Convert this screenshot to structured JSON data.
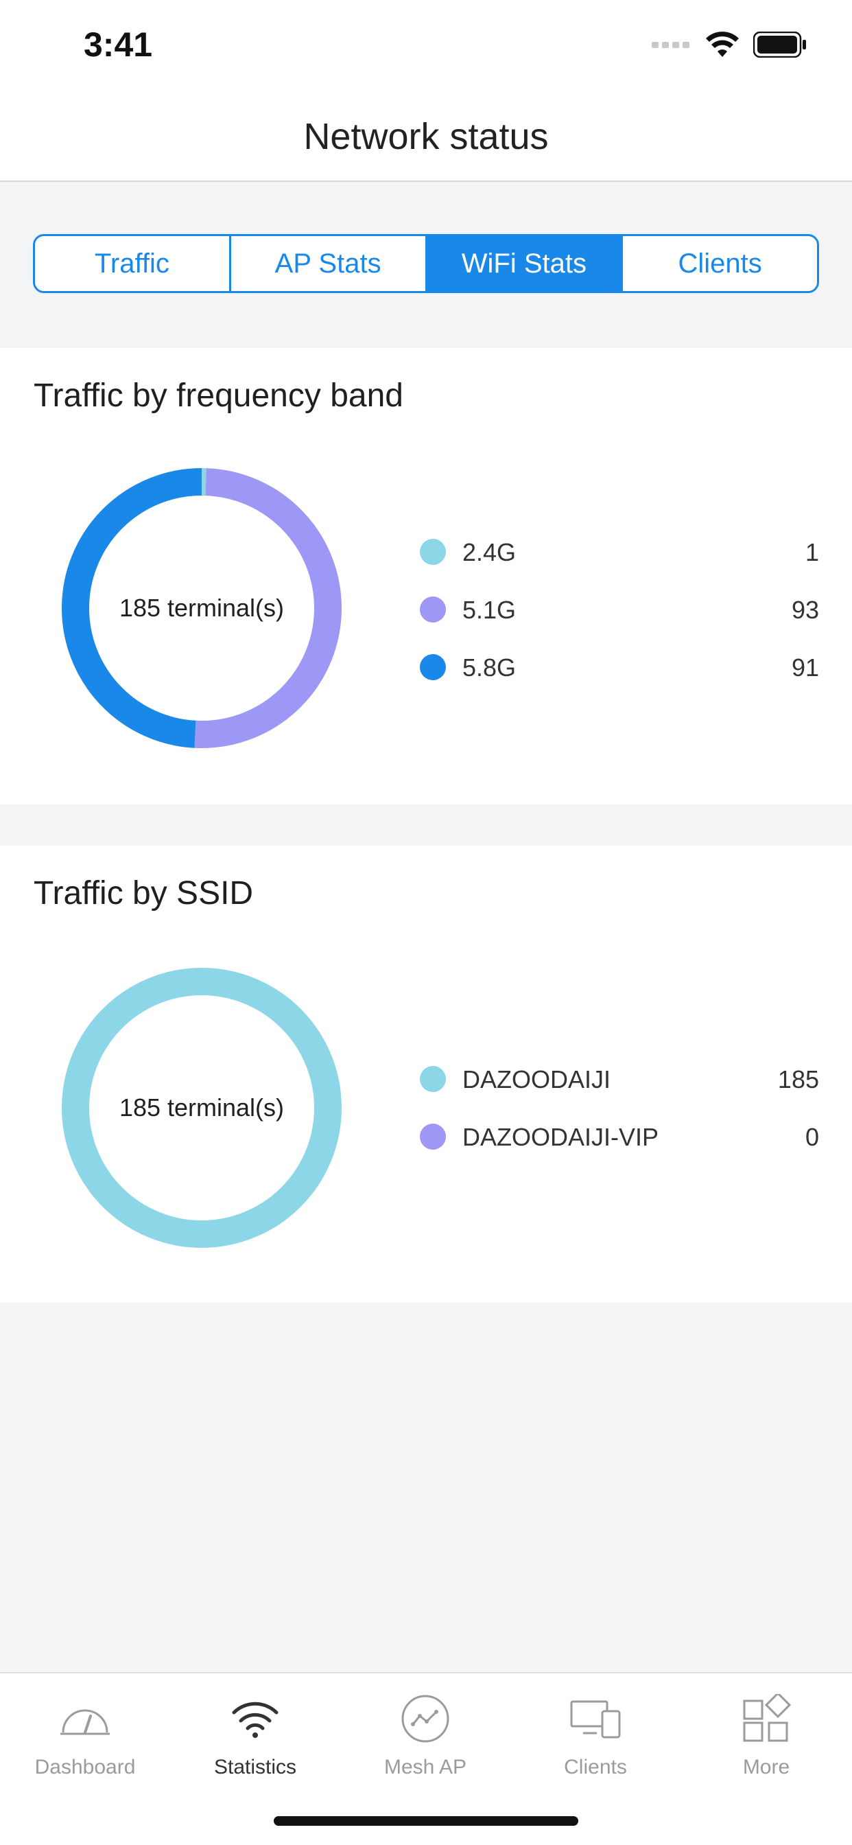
{
  "status_bar": {
    "time": "3:41"
  },
  "header": {
    "title": "Network status"
  },
  "tabs": [
    {
      "label": "Traffic",
      "active": false
    },
    {
      "label": "AP Stats",
      "active": false
    },
    {
      "label": "WiFi Stats",
      "active": true
    },
    {
      "label": "Clients",
      "active": false
    }
  ],
  "cards": [
    {
      "title": "Traffic by frequency band",
      "center_label": "185 terminal(s)",
      "items": [
        {
          "label": "2.4G",
          "value": 1,
          "color": "#8dd6e8"
        },
        {
          "label": "5.1G",
          "value": 93,
          "color": "#9d98f5"
        },
        {
          "label": "5.8G",
          "value": 91,
          "color": "#1a88e8"
        }
      ]
    },
    {
      "title": "Traffic by SSID",
      "center_label": "185 terminal(s)",
      "items": [
        {
          "label": "DAZOODAIJI",
          "value": 185,
          "color": "#8dd6e8"
        },
        {
          "label": "DAZOODAIJI-VIP",
          "value": 0,
          "color": "#9d98f5"
        }
      ]
    }
  ],
  "bottom_nav": [
    {
      "label": "Dashboard",
      "icon": "dashboard-icon",
      "active": false
    },
    {
      "label": "Statistics",
      "icon": "wifi-icon",
      "active": true
    },
    {
      "label": "Mesh AP",
      "icon": "mesh-icon",
      "active": false
    },
    {
      "label": "Clients",
      "icon": "devices-icon",
      "active": false
    },
    {
      "label": "More",
      "icon": "grid-icon",
      "active": false
    }
  ],
  "colors": {
    "accent": "#1a88e8",
    "background": "#f3f4f6"
  }
}
